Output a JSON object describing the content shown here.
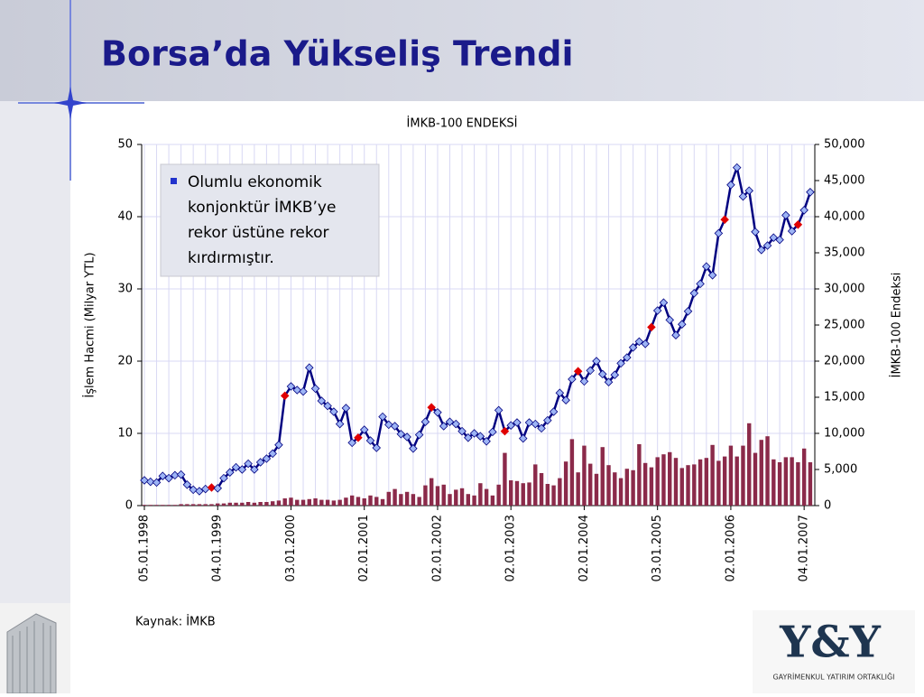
{
  "title": "Borsa’da Yükseliş Trendi",
  "callout": [
    "Olumlu ekonomik",
    "konjonktür İMKB’ye",
    "rekor üstüne rekor",
    "kırdırmıştır."
  ],
  "source": "Kaynak: İMKB",
  "logo": {
    "mark": "Y&Y",
    "text": "GAYRİMENKUL YATIRIM ORTAKLIĞI"
  },
  "chart_data": {
    "type": "bar_line",
    "title": "İMKB-100 ENDEKSİ",
    "ylabel": "İşlem Hacmi (Milyar YTL)",
    "y2label": "İMKB-100 Endeksi",
    "categories": [
      "05.01.1998",
      null,
      null,
      null,
      null,
      null,
      null,
      null,
      null,
      null,
      null,
      null,
      "04.01.1999",
      null,
      null,
      null,
      null,
      null,
      null,
      null,
      null,
      null,
      null,
      null,
      "03.01.2000",
      null,
      null,
      null,
      null,
      null,
      null,
      null,
      null,
      null,
      null,
      null,
      "02.01.2001",
      null,
      null,
      null,
      null,
      null,
      null,
      null,
      null,
      null,
      null,
      null,
      "02.01.2002",
      null,
      null,
      null,
      null,
      null,
      null,
      null,
      null,
      null,
      null,
      null,
      "02.01.2003",
      null,
      null,
      null,
      null,
      null,
      null,
      null,
      null,
      null,
      null,
      null,
      "02.01.2004",
      null,
      null,
      null,
      null,
      null,
      null,
      null,
      null,
      null,
      null,
      null,
      "03.01.2005",
      null,
      null,
      null,
      null,
      null,
      null,
      null,
      null,
      null,
      null,
      null,
      "02.01.2006",
      null,
      null,
      null,
      null,
      null,
      null,
      null,
      null,
      null,
      null,
      null,
      "04.01.2007",
      null
    ],
    "series": [
      {
        "type": "bar",
        "axis": "y",
        "color": "#8b2a4a",
        "values": [
          0.1,
          0.1,
          0.1,
          0.1,
          0.1,
          0.1,
          0.2,
          0.2,
          0.2,
          0.2,
          0.2,
          0.2,
          0.3,
          0.3,
          0.4,
          0.4,
          0.4,
          0.5,
          0.4,
          0.5,
          0.5,
          0.6,
          0.7,
          1.0,
          1.1,
          0.8,
          0.8,
          0.9,
          1.0,
          0.8,
          0.8,
          0.7,
          0.8,
          1.1,
          1.4,
          1.2,
          1.0,
          1.4,
          1.2,
          0.9,
          1.9,
          2.3,
          1.6,
          1.9,
          1.6,
          1.2,
          2.8,
          3.8,
          2.7,
          2.9,
          1.6,
          2.2,
          2.4,
          1.6,
          1.4,
          3.1,
          2.3,
          1.4,
          2.9,
          7.3,
          3.5,
          3.4,
          3.1,
          3.2,
          5.7,
          4.5,
          3.0,
          2.8,
          3.8,
          6.1,
          9.2,
          4.6,
          8.3,
          5.8,
          4.4,
          8.1,
          5.6,
          4.6,
          3.8,
          5.1,
          4.9,
          8.5,
          5.9,
          5.3,
          6.7,
          7.1,
          7.4,
          6.6,
          5.2,
          5.6,
          5.7,
          6.4,
          6.6,
          8.4,
          6.2,
          6.8,
          8.3,
          6.8,
          8.3,
          11.4,
          7.3,
          9.1,
          9.6,
          6.4,
          6.0,
          6.7,
          6.7,
          6.0,
          7.9,
          6.0
        ]
      },
      {
        "type": "line",
        "axis": "y2",
        "color": "#000080",
        "marker_color": "#9db4f5",
        "values": [
          3500,
          3300,
          3200,
          4100,
          3800,
          4200,
          4300,
          2900,
          2200,
          2000,
          2300,
          2500,
          2400,
          3800,
          4600,
          5300,
          5000,
          5800,
          5000,
          6000,
          6500,
          7200,
          8400,
          15200,
          16500,
          16000,
          15800,
          19100,
          16200,
          14500,
          13800,
          13000,
          11300,
          13500,
          8700,
          9400,
          10500,
          9000,
          8000,
          12300,
          11200,
          11000,
          9900,
          9500,
          7900,
          9800,
          11600,
          13600,
          12900,
          11000,
          11600,
          11300,
          10300,
          9400,
          10000,
          9600,
          8900,
          10200,
          13200,
          10300,
          11100,
          11500,
          9300,
          11500,
          11300,
          10700,
          11800,
          13000,
          15600,
          14600,
          17500,
          18600,
          17200,
          18700,
          20000,
          18200,
          17100,
          18100,
          19700,
          20500,
          21900,
          22700,
          22400,
          24700,
          27000,
          28100,
          25700,
          23600,
          25100,
          26900,
          29400,
          30700,
          33100,
          31900,
          37700,
          39600,
          44400,
          46800,
          42800,
          43600,
          37900,
          35400,
          36000,
          37100,
          36800,
          40200,
          38000,
          38900,
          40900,
          43400
        ]
      }
    ],
    "highlight": {
      "color": "#e00000",
      "indices": [
        11,
        23,
        35,
        47,
        59,
        71,
        83,
        95,
        107
      ]
    },
    "ylim": [
      0,
      50
    ],
    "yticks": [
      0,
      10,
      20,
      30,
      40,
      50
    ],
    "y2lim": [
      0,
      50000
    ],
    "y2ticks": [
      0,
      {
        "value": 5000,
        "label": "5,000"
      },
      {
        "value": 10000,
        "label": "10,000"
      },
      {
        "value": 15000,
        "label": "15,000"
      },
      {
        "value": 20000,
        "label": "20,000"
      },
      {
        "value": 25000,
        "label": "25,000"
      },
      {
        "value": 30000,
        "label": "30,000"
      },
      {
        "value": 35000,
        "label": "35,000"
      },
      {
        "value": 40000,
        "label": "40,000"
      },
      {
        "value": 45000,
        "label": "45,000"
      },
      {
        "value": 50000,
        "label": "50,000"
      }
    ],
    "grid": true,
    "grid_color": "#d8d8f4"
  }
}
